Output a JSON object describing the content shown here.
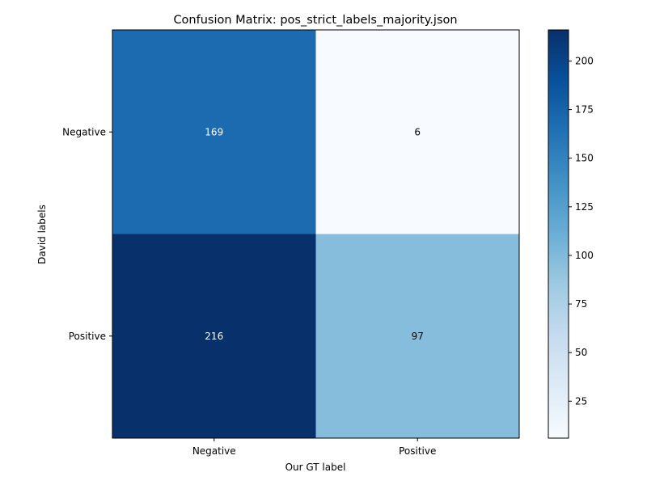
{
  "chart_data": {
    "type": "heatmap",
    "title": "Confusion Matrix: pos_strict_labels_majority.json",
    "xlabel": "Our GT label",
    "ylabel": "David labels",
    "x_categories": [
      "Negative",
      "Positive"
    ],
    "y_categories": [
      "Negative",
      "Positive"
    ],
    "values": [
      [
        169,
        6
      ],
      [
        216,
        97
      ]
    ],
    "colormap": "Blues",
    "vmin": 6,
    "vmax": 216,
    "colorbar_ticks": [
      25,
      50,
      75,
      100,
      125,
      150,
      175,
      200
    ],
    "grid": false
  }
}
